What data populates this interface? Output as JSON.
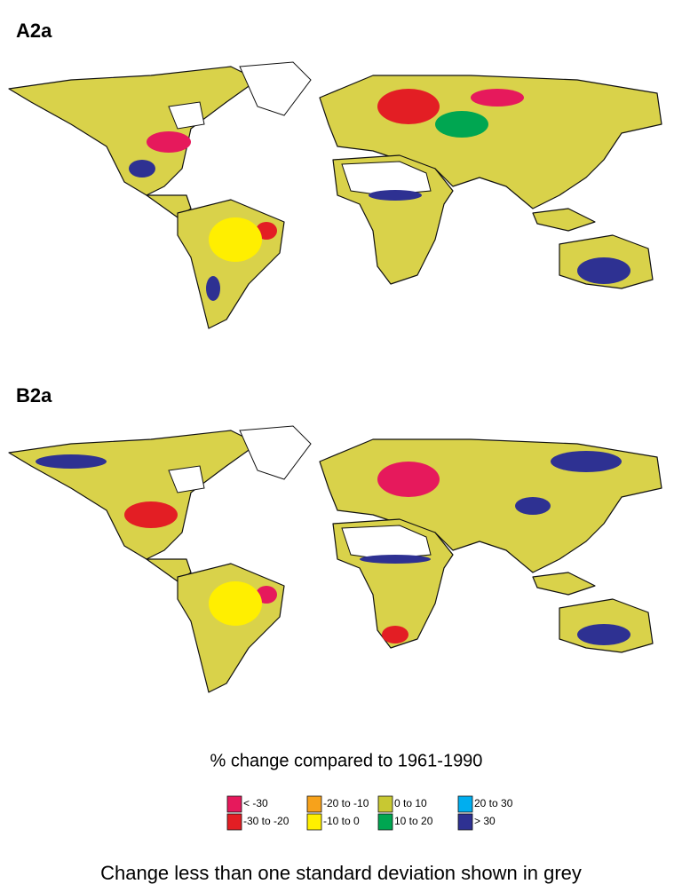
{
  "panels": [
    {
      "label": "A2a"
    },
    {
      "label": "B2a"
    }
  ],
  "legend": {
    "title": "% change compared to 1961-1990",
    "items": [
      {
        "label": "< -30",
        "color": "#e6195c"
      },
      {
        "label": "-30 to -20",
        "color": "#e31e24"
      },
      {
        "label": "-20 to -10",
        "color": "#f7a21b"
      },
      {
        "label": "-10 to 0",
        "color": "#ffef00"
      },
      {
        "label": "0 to 10",
        "color": "#c8c832"
      },
      {
        "label": "10 to 20",
        "color": "#00a651"
      },
      {
        "label": "20 to 30",
        "color": "#00aeef"
      },
      {
        "label": "> 30",
        "color": "#2e3192"
      }
    ]
  },
  "note": "Change less than one standard deviation shown in grey"
}
